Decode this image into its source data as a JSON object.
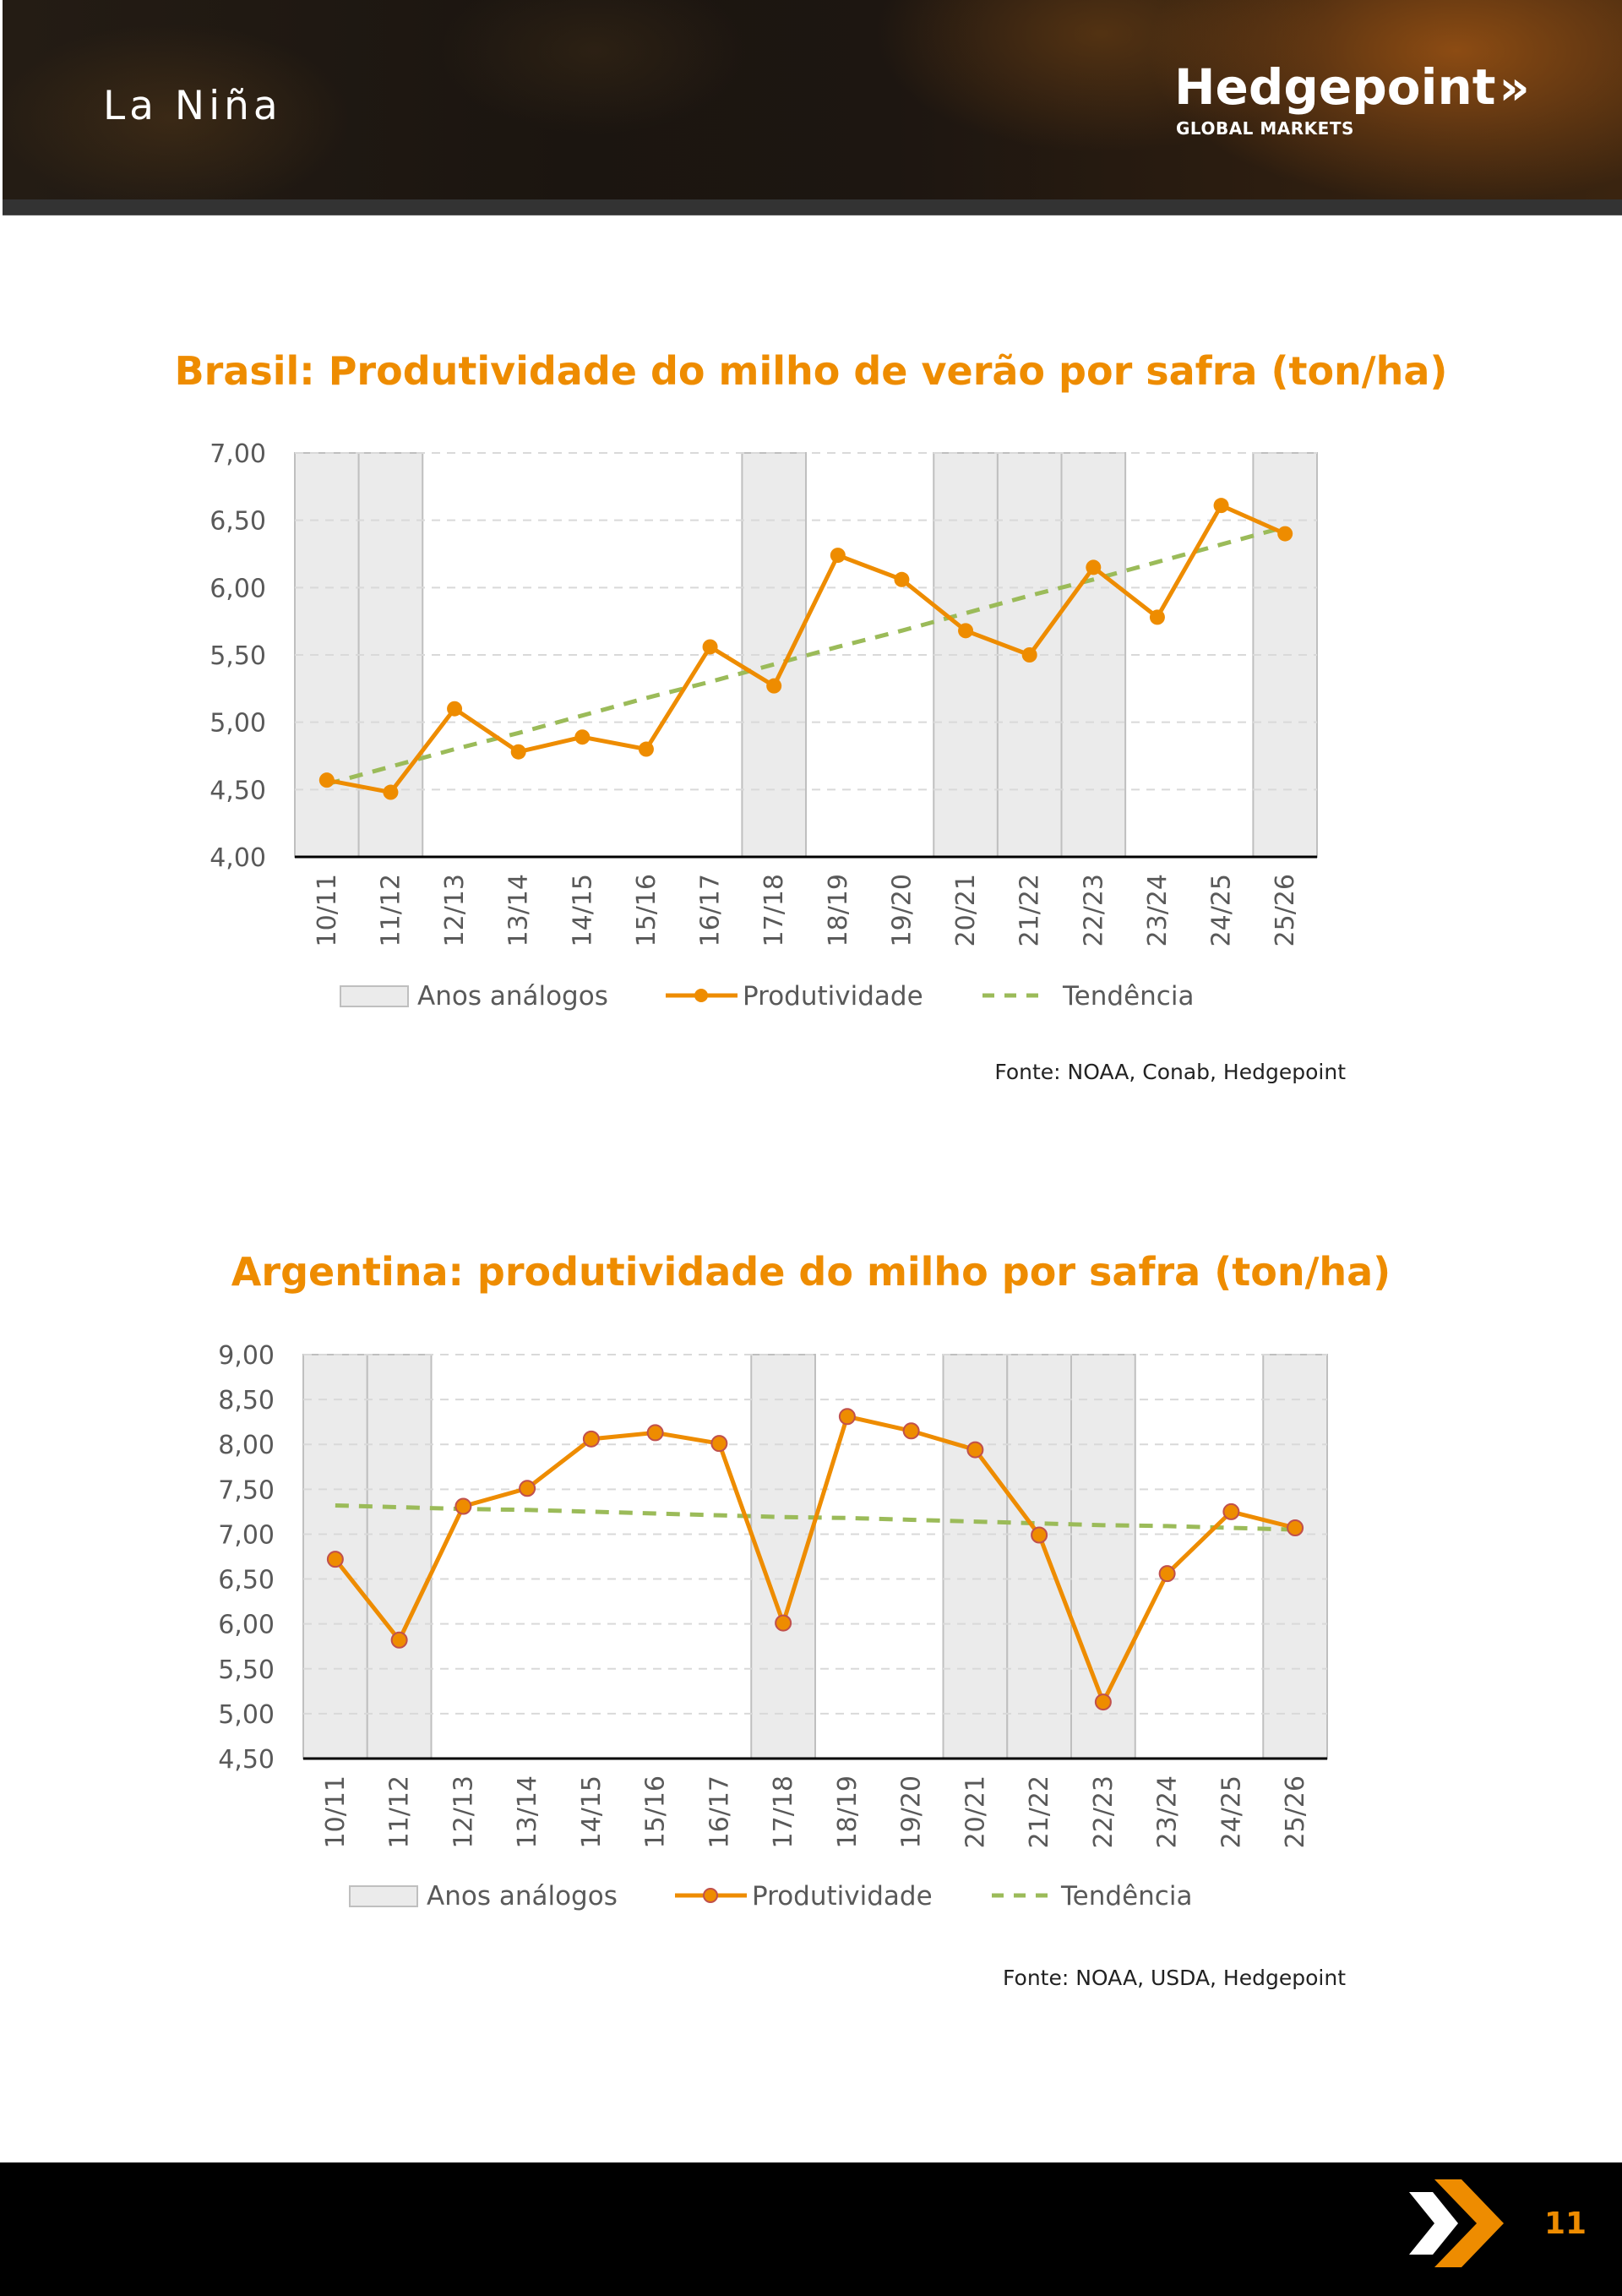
{
  "header": {
    "topic": "La Niña",
    "logo_name": "Hedgepoint",
    "logo_arrow": "»",
    "logo_subtitle": "GLOBAL MARKETS"
  },
  "footer": {
    "page_number": "11",
    "icon": "double-chevron-icon"
  },
  "colors": {
    "accent": "#EE8C00",
    "trend": "#9BBB59",
    "analog_fill": "#EBEBEB",
    "analog_stroke": "#BFBFBF",
    "marker_outline_argentina": "#C0504D",
    "grid": "#D9D9D9",
    "axis": "#000000"
  },
  "charts": [
    {
      "id": "brasil",
      "source": "Fonte: NOAA, Conab, Hedgepoint",
      "legend": {
        "analog": "Anos análogos",
        "series": "Produtividade",
        "trend": "Tendência"
      }
    },
    {
      "id": "argentina",
      "source": "Fonte: NOAA, USDA, Hedgepoint",
      "legend": {
        "analog": "Anos análogos",
        "series": "Produtividade",
        "trend": "Tendência"
      }
    }
  ],
  "chart_data": [
    {
      "type": "line",
      "title": "Brasil: Produtividade do milho de verão por safra (ton/ha)",
      "xlabel": "",
      "ylabel": "",
      "categories": [
        "10/11",
        "11/12",
        "12/13",
        "13/14",
        "14/15",
        "15/16",
        "16/17",
        "17/18",
        "18/19",
        "19/20",
        "20/21",
        "21/22",
        "22/23",
        "23/24",
        "24/25",
        "25/26"
      ],
      "ylim": [
        4.0,
        7.0
      ],
      "yticks": [
        "4,00",
        "4,50",
        "5,00",
        "5,50",
        "6,00",
        "6,50",
        "7,00"
      ],
      "ytick_values": [
        4.0,
        4.5,
        5.0,
        5.5,
        6.0,
        6.5,
        7.0
      ],
      "grid": true,
      "legend_position": "bottom",
      "series": [
        {
          "name": "Produtividade",
          "values": [
            4.57,
            4.48,
            5.1,
            4.78,
            4.89,
            4.8,
            5.56,
            5.27,
            6.24,
            6.06,
            5.68,
            5.5,
            6.15,
            5.78,
            6.61,
            6.4
          ]
        },
        {
          "name": "Tendência",
          "style": "dashed",
          "values": [
            4.54,
            4.67,
            4.8,
            4.92,
            5.05,
            5.18,
            5.3,
            5.43,
            5.56,
            5.68,
            5.81,
            5.94,
            6.06,
            6.19,
            6.32,
            6.45
          ]
        }
      ],
      "analog_years": [
        "10/11",
        "11/12",
        "17/18",
        "20/21",
        "21/22",
        "22/23",
        "25/26"
      ],
      "analog_label": "Anos análogos",
      "marker_outline": false
    },
    {
      "type": "line",
      "title": "Argentina: produtividade do milho por safra (ton/ha)",
      "xlabel": "",
      "ylabel": "",
      "categories": [
        "10/11",
        "11/12",
        "12/13",
        "13/14",
        "14/15",
        "15/16",
        "16/17",
        "17/18",
        "18/19",
        "19/20",
        "20/21",
        "21/22",
        "22/23",
        "23/24",
        "24/25",
        "25/26"
      ],
      "ylim": [
        4.5,
        9.0
      ],
      "yticks": [
        "4,50",
        "5,00",
        "5,50",
        "6,00",
        "6,50",
        "7,00",
        "7,50",
        "8,00",
        "8,50",
        "9,00"
      ],
      "ytick_values": [
        4.5,
        5.0,
        5.5,
        6.0,
        6.5,
        7.0,
        7.5,
        8.0,
        8.5,
        9.0
      ],
      "grid": true,
      "legend_position": "bottom",
      "series": [
        {
          "name": "Produtividade",
          "values": [
            6.72,
            5.82,
            7.31,
            7.51,
            8.06,
            8.13,
            8.01,
            6.01,
            8.31,
            8.15,
            7.94,
            6.99,
            5.13,
            6.56,
            7.25,
            7.07
          ]
        },
        {
          "name": "Tendência",
          "style": "dashed",
          "values": [
            7.32,
            7.3,
            7.28,
            7.27,
            7.25,
            7.23,
            7.21,
            7.19,
            7.18,
            7.16,
            7.14,
            7.12,
            7.1,
            7.09,
            7.07,
            7.05
          ]
        }
      ],
      "analog_years": [
        "10/11",
        "11/12",
        "17/18",
        "20/21",
        "21/22",
        "22/23",
        "25/26"
      ],
      "analog_label": "Anos análogos",
      "marker_outline": true
    }
  ]
}
